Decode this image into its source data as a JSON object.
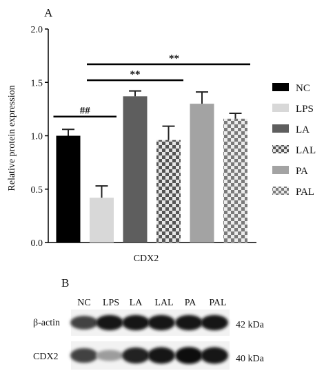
{
  "panel_a_label": "A",
  "panel_b_label": "B",
  "chart_data": {
    "type": "bar",
    "title": "",
    "xlabel": "CDX2",
    "ylabel": "Relative protein expression",
    "ylim": [
      0,
      2.0
    ],
    "yticks": [
      "0.0",
      "0.5",
      "1.0",
      "1.5",
      "2.0"
    ],
    "grid": false,
    "legend_position": "right",
    "series": [
      {
        "name": "NC",
        "value": 1.0,
        "error": 0.06,
        "color": "#000000",
        "pattern": "solid"
      },
      {
        "name": "LPS",
        "value": 0.42,
        "error": 0.11,
        "color": "#d8d8d8",
        "pattern": "solid"
      },
      {
        "name": "LA",
        "value": 1.37,
        "error": 0.05,
        "color": "#5e5e5e",
        "pattern": "solid"
      },
      {
        "name": "LAL",
        "value": 0.96,
        "error": 0.13,
        "color": "#5e5e5e",
        "pattern": "checker"
      },
      {
        "name": "PA",
        "value": 1.3,
        "error": 0.11,
        "color": "#a3a3a3",
        "pattern": "solid"
      },
      {
        "name": "PAL",
        "value": 1.16,
        "error": 0.05,
        "color": "#8a8a8a",
        "pattern": "checker"
      }
    ],
    "annotations": [
      {
        "text": "##",
        "from": "NC",
        "to": "LPS"
      },
      {
        "text": "**",
        "from": "LPS",
        "to": "LAL"
      },
      {
        "text": "**",
        "from": "LPS",
        "to": "PAL"
      }
    ]
  },
  "blot": {
    "lanes": [
      "NC",
      "LPS",
      "LA",
      "LAL",
      "PA",
      "PAL"
    ],
    "rows": [
      {
        "label": "β-actin",
        "size": "42 kDa",
        "intensities": [
          0.75,
          0.95,
          0.95,
          0.95,
          0.95,
          0.95
        ]
      },
      {
        "label": "CDX2",
        "size": "40 kDa",
        "intensities": [
          0.75,
          0.35,
          0.9,
          0.95,
          1.0,
          0.95
        ]
      }
    ]
  }
}
